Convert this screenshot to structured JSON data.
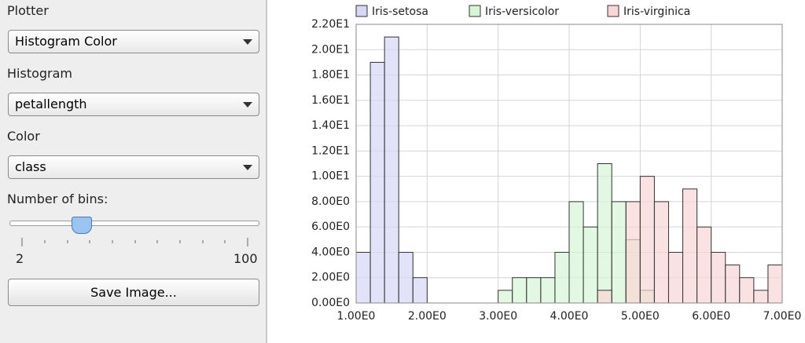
{
  "panel": {
    "plotter_label": "Plotter",
    "plotter_value": "Histogram Color",
    "histogram_label": "Histogram",
    "histogram_value": "petallength",
    "color_label": "Color",
    "color_value": "class",
    "bins_label": "Number of bins:",
    "slider_min": 2,
    "slider_max": 100,
    "save_button": "Save Image..."
  },
  "chart_data": {
    "type": "histogram",
    "bins": [
      1.0,
      1.2,
      1.4,
      1.6,
      1.8,
      2.0,
      2.2,
      2.4,
      2.6,
      2.8,
      3.0,
      3.2,
      3.4,
      3.6,
      3.8,
      4.0,
      4.2,
      4.4,
      4.6,
      4.8,
      5.0,
      5.2,
      5.4,
      5.6,
      5.8,
      6.0,
      6.2,
      6.4,
      6.6,
      6.8,
      7.0
    ],
    "series": [
      {
        "name": "Iris-setosa",
        "color": "#d6d6f5",
        "values": [
          4,
          19,
          21,
          4,
          2,
          0,
          0,
          0,
          0,
          0,
          0,
          0,
          0,
          0,
          0,
          0,
          0,
          0,
          0,
          0,
          0,
          0,
          0,
          0,
          0,
          0,
          0,
          0,
          0,
          0
        ]
      },
      {
        "name": "Iris-versicolor",
        "color": "#d6f5d6",
        "values": [
          0,
          0,
          0,
          0,
          0,
          0,
          0,
          0,
          0,
          0,
          1,
          2,
          2,
          2,
          4,
          8,
          6,
          11,
          8,
          5,
          1,
          0,
          0,
          0,
          0,
          0,
          0,
          0,
          0,
          0
        ]
      },
      {
        "name": "Iris-virginica",
        "color": "#fad6d6",
        "values": [
          0,
          0,
          0,
          0,
          0,
          0,
          0,
          0,
          0,
          0,
          0,
          0,
          0,
          0,
          0,
          0,
          0,
          1,
          0,
          8,
          10,
          8,
          4,
          9,
          6,
          4,
          3,
          2,
          1,
          3
        ]
      }
    ],
    "xlim": [
      1.0,
      7.0
    ],
    "ylim": [
      0,
      22
    ],
    "xticks": [
      {
        "value": 1,
        "label": "1.00E0"
      },
      {
        "value": 2,
        "label": "2.00E0"
      },
      {
        "value": 3,
        "label": "3.00E0"
      },
      {
        "value": 4,
        "label": "4.00E0"
      },
      {
        "value": 5,
        "label": "5.00E0"
      },
      {
        "value": 6,
        "label": "6.00E0"
      },
      {
        "value": 7,
        "label": "7.00E0"
      }
    ],
    "yticks": [
      {
        "value": 0,
        "label": "0.00E0"
      },
      {
        "value": 2,
        "label": "2.00E0"
      },
      {
        "value": 4,
        "label": "4.00E0"
      },
      {
        "value": 6,
        "label": "6.00E0"
      },
      {
        "value": 8,
        "label": "8.00E0"
      },
      {
        "value": 10,
        "label": "1.00E1"
      },
      {
        "value": 12,
        "label": "1.20E1"
      },
      {
        "value": 14,
        "label": "1.40E1"
      },
      {
        "value": 16,
        "label": "1.60E1"
      },
      {
        "value": 18,
        "label": "1.80E1"
      },
      {
        "value": 20,
        "label": "2.00E1"
      },
      {
        "value": 22,
        "label": "2.20E1"
      }
    ],
    "grid": true,
    "legend": "top"
  }
}
